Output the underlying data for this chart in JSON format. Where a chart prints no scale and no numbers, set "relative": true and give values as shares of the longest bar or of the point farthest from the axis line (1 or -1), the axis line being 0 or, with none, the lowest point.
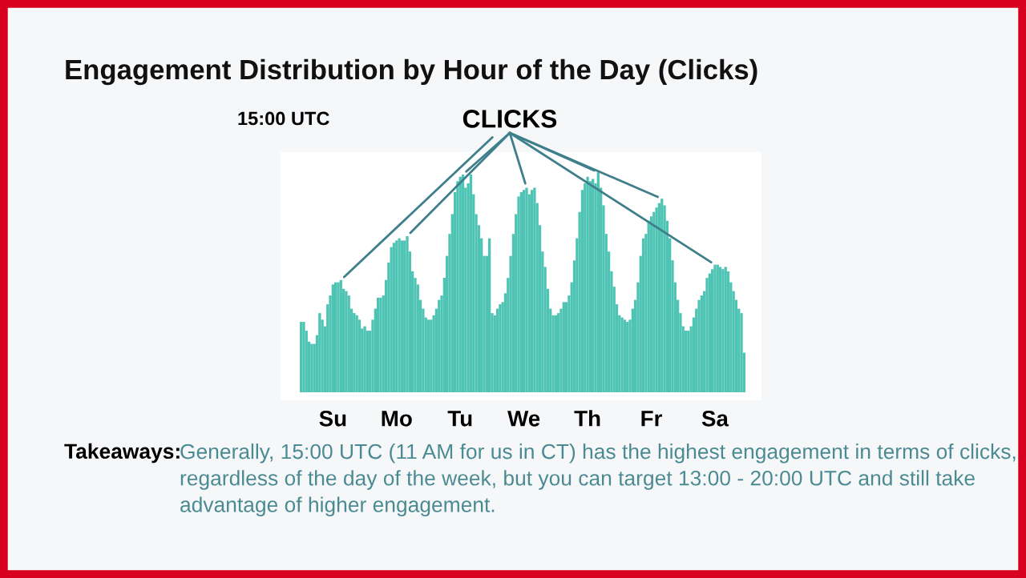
{
  "chart_data": {
    "type": "bar",
    "title": "Engagement Distribution by Hour of the Day (Clicks)",
    "relative": true,
    "color": "#4fc4b4",
    "categories": [
      null,
      null,
      null,
      null,
      null,
      null,
      null,
      null,
      null,
      null,
      null,
      null,
      "Su",
      null,
      null,
      null,
      null,
      null,
      null,
      null,
      null,
      null,
      null,
      null,
      null,
      null,
      null,
      null,
      null,
      null,
      null,
      null,
      null,
      null,
      null,
      null,
      "Mo",
      null,
      null,
      null,
      null,
      null,
      null,
      null,
      null,
      null,
      null,
      null,
      null,
      null,
      null,
      null,
      null,
      null,
      null,
      null,
      null,
      null,
      null,
      null,
      "Tu",
      null,
      null,
      null,
      null,
      null,
      null,
      null,
      null,
      null,
      null,
      null,
      null,
      null,
      null,
      null,
      null,
      null,
      null,
      null,
      null,
      null,
      null,
      null,
      "We",
      null,
      null,
      null,
      null,
      null,
      null,
      null,
      null,
      null,
      null,
      null,
      null,
      null,
      null,
      null,
      null,
      null,
      null,
      null,
      null,
      null,
      null,
      null,
      "Th",
      null,
      null,
      null,
      null,
      null,
      null,
      null,
      null,
      null,
      null,
      null,
      null,
      null,
      null,
      null,
      null,
      null,
      null,
      null,
      null,
      null,
      null,
      null,
      "Fr",
      null,
      null,
      null,
      null,
      null,
      null,
      null,
      null,
      null,
      null,
      null,
      null,
      null,
      null,
      null,
      null,
      null,
      null,
      null,
      null,
      null,
      null,
      null,
      "Sa",
      null,
      null,
      null,
      null,
      null,
      null,
      null,
      null,
      null,
      null,
      null
    ],
    "values": [
      0.32,
      0.32,
      0.28,
      0.23,
      0.22,
      0.22,
      0.26,
      0.36,
      0.33,
      0.3,
      0.4,
      0.44,
      0.49,
      0.5,
      0.5,
      0.51,
      0.47,
      0.46,
      0.44,
      0.38,
      0.36,
      0.35,
      0.33,
      0.29,
      0.3,
      0.28,
      0.28,
      0.33,
      0.38,
      0.43,
      0.43,
      0.44,
      0.51,
      0.59,
      0.66,
      0.68,
      0.69,
      0.7,
      0.69,
      0.69,
      0.71,
      0.64,
      0.55,
      0.52,
      0.49,
      0.42,
      0.38,
      0.34,
      0.33,
      0.33,
      0.35,
      0.38,
      0.42,
      0.44,
      0.52,
      0.62,
      0.72,
      0.81,
      0.91,
      0.96,
      0.98,
      0.99,
      0.93,
      0.95,
      0.99,
      0.9,
      0.81,
      0.76,
      0.7,
      0.62,
      0.62,
      0.7,
      0.36,
      0.35,
      0.38,
      0.4,
      0.41,
      0.45,
      0.52,
      0.62,
      0.72,
      0.81,
      0.89,
      0.91,
      0.92,
      0.93,
      0.9,
      0.92,
      0.93,
      0.86,
      0.76,
      0.64,
      0.57,
      0.47,
      0.38,
      0.35,
      0.35,
      0.36,
      0.38,
      0.41,
      0.41,
      0.44,
      0.5,
      0.6,
      0.7,
      0.82,
      0.92,
      0.95,
      0.98,
      0.96,
      0.97,
      0.95,
      1.0,
      0.93,
      0.85,
      0.72,
      0.64,
      0.55,
      0.48,
      0.4,
      0.35,
      0.34,
      0.33,
      0.32,
      0.33,
      0.38,
      0.42,
      0.5,
      0.62,
      0.7,
      0.72,
      0.78,
      0.8,
      0.82,
      0.84,
      0.86,
      0.88,
      0.85,
      0.78,
      0.7,
      0.6,
      0.5,
      0.42,
      0.36,
      0.3,
      0.28,
      0.28,
      0.3,
      0.34,
      0.38,
      0.42,
      0.44,
      0.46,
      0.52,
      0.54,
      0.56,
      0.58,
      0.58,
      0.57,
      0.56,
      0.57,
      0.55,
      0.5,
      0.46,
      0.42,
      0.38,
      0.36,
      0.18
    ],
    "annotations": [
      "15:00 UTC",
      "CLICKS",
      "Takeaways:",
      "Generally, 15:00 UTC (11 AM for us in CT) has the highest engagement in terms of clicks, regardless of the day of the week, but you can target 13:00 - 20:00 UTC and still take advantage of higher engagement."
    ],
    "grid": false,
    "legend": false
  }
}
